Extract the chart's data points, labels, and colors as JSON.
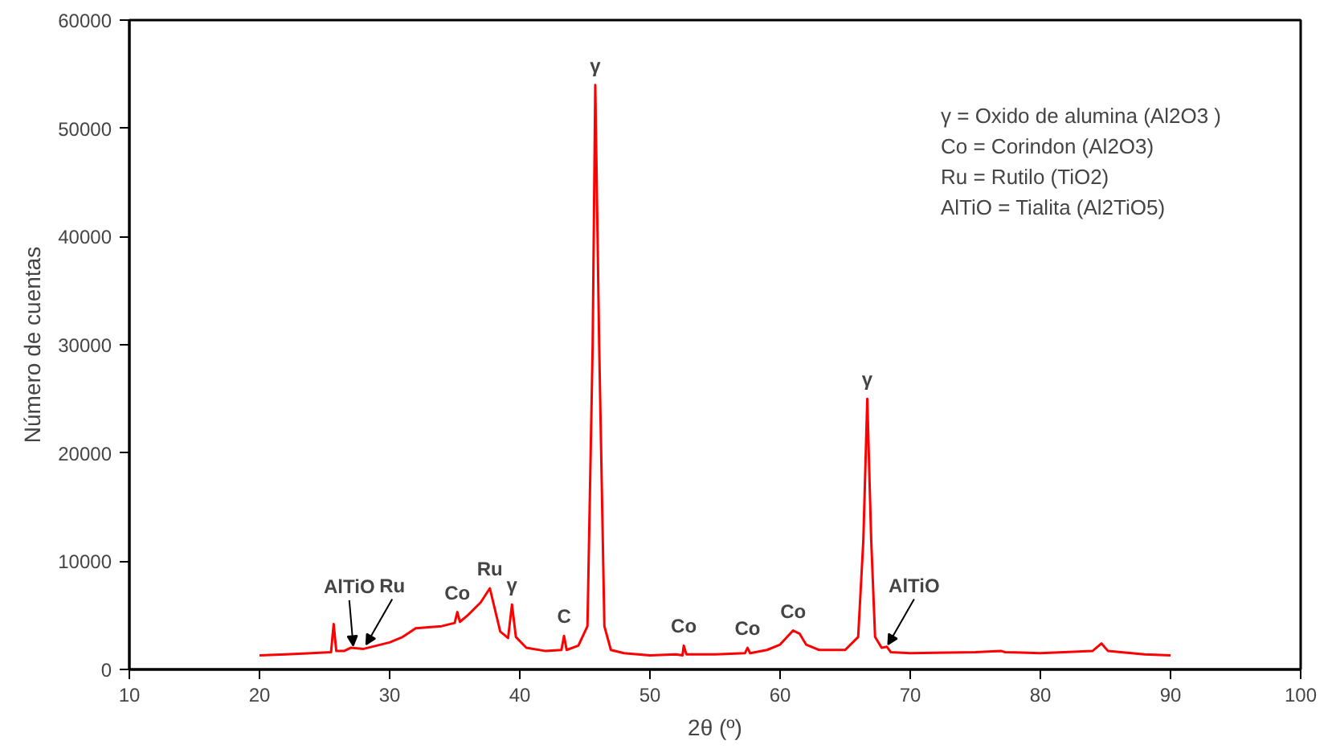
{
  "chart_data": {
    "type": "line",
    "xlabel": "2θ (º)",
    "ylabel": "Número de cuentas",
    "xlim": [
      10,
      100
    ],
    "xticks": [
      10,
      20,
      30,
      40,
      50,
      60,
      70,
      80,
      90,
      100
    ],
    "ylim": [
      0,
      60000
    ],
    "yticks": [
      0,
      10000,
      20000,
      30000,
      40000,
      50000,
      60000
    ],
    "grid": false,
    "marker": "none",
    "line_style": "solid",
    "series": [
      {
        "color": "#ff0000",
        "x": [
          20,
          22,
          24,
          25.5,
          25.7,
          25.9,
          26.5,
          27,
          28,
          29,
          30,
          31,
          32,
          33,
          34,
          35,
          35.2,
          35.4,
          36,
          37,
          37.7,
          38.1,
          38.5,
          39.1,
          39.4,
          39.7,
          40.5,
          42,
          43.2,
          43.4,
          43.6,
          44.5,
          45.2,
          45.6,
          45.8,
          46.1,
          46.5,
          47,
          48,
          50,
          52,
          52.5,
          52.6,
          52.8,
          55,
          57.3,
          57.5,
          57.7,
          59,
          60,
          61,
          61.5,
          62,
          63,
          65,
          66,
          66.4,
          66.7,
          67.0,
          67.3,
          67.8,
          68.2,
          68.5,
          70,
          75,
          77,
          77.3,
          80,
          84,
          84.7,
          85.2,
          88,
          90
        ],
        "values": [
          1300,
          1400,
          1500,
          1600,
          4200,
          1700,
          1700,
          2000,
          1900,
          2200,
          2500,
          3000,
          3800,
          3900,
          4000,
          4300,
          5300,
          4400,
          5000,
          6200,
          7500,
          5500,
          3500,
          2900,
          6000,
          3000,
          2000,
          1700,
          1800,
          3100,
          1800,
          2200,
          4000,
          30000,
          54000,
          30000,
          4000,
          1800,
          1500,
          1300,
          1400,
          1300,
          2200,
          1400,
          1400,
          1500,
          2000,
          1500,
          1800,
          2300,
          3600,
          3300,
          2300,
          1800,
          1800,
          3000,
          12000,
          25000,
          12000,
          3000,
          2000,
          2100,
          1600,
          1500,
          1600,
          1700,
          1600,
          1500,
          1700,
          2400,
          1700,
          1400,
          1300
        ]
      }
    ],
    "annotations": [
      {
        "text": "γ",
        "x": 45.8,
        "y": 54000
      },
      {
        "text": "γ",
        "x": 66.7,
        "y": 25000
      },
      {
        "text": "γ",
        "x": 39.4,
        "y": 6000
      },
      {
        "text": "Ru",
        "x": 37.7,
        "y": 7500
      },
      {
        "text": "Co",
        "x": 35.2,
        "y": 5300
      },
      {
        "text": "C",
        "x": 43.4,
        "y": 3100
      },
      {
        "text": "Co",
        "x": 52.6,
        "y": 2200
      },
      {
        "text": "Co",
        "x": 57.5,
        "y": 2000
      },
      {
        "text": "Co",
        "x": 61,
        "y": 3600
      },
      {
        "text": "AlTiO",
        "x": 27.2,
        "y": 1900
      },
      {
        "text": "Ru",
        "x": 28.2,
        "y": 2000
      },
      {
        "text": "AlTiO",
        "x": 68.3,
        "y": 2000
      },
      "γ = Oxido de alumina (Al2O3 )",
      "Co = Corindon (Al2O3)",
      "Ru = Rutilo (TiO2)",
      "AlTiO = Tialita (Al2TiO5)"
    ]
  }
}
